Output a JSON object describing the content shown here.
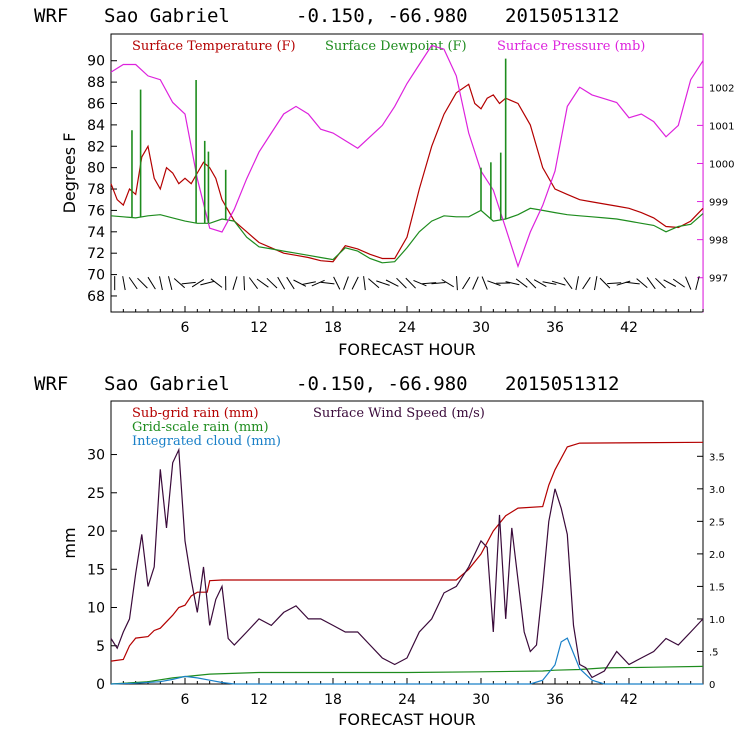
{
  "chart_data": [
    {
      "type": "line",
      "header": {
        "model": "WRF",
        "station": "Sao Gabriel",
        "coords": "-0.150, -66.980",
        "run": "2015051312"
      },
      "xlabel": "FORECAST HOUR",
      "ylabel": "Degrees F",
      "xlim": [
        0,
        48
      ],
      "xticks": [
        "6",
        "12",
        "18",
        "24",
        "30",
        "36",
        "42"
      ],
      "ylim": [
        66.5,
        92.5
      ],
      "yticks": [
        "68",
        "70",
        "72",
        "74",
        "76",
        "78",
        "80",
        "82",
        "84",
        "86",
        "88",
        "90"
      ],
      "y2lim": [
        996.1,
        1003.4
      ],
      "y2ticks": [
        "997",
        "998",
        "999",
        "1000",
        "1001",
        "1002"
      ],
      "series": [
        {
          "name": "Surface Temperature (F)",
          "color": "#b40000",
          "axis": "left",
          "x": [
            0,
            0.5,
            1,
            1.5,
            2,
            2.5,
            3,
            3.5,
            4,
            4.5,
            5,
            5.5,
            6,
            6.5,
            7,
            7.5,
            8,
            8.5,
            9,
            9.5,
            10,
            11,
            12,
            13,
            14,
            15,
            16,
            17,
            18,
            19,
            20,
            21,
            22,
            23,
            24,
            25,
            26,
            27,
            28,
            29,
            29.5,
            30,
            30.5,
            31,
            31.5,
            32,
            33,
            34,
            35,
            36,
            37,
            38,
            39,
            40,
            41,
            42,
            43,
            44,
            45,
            46,
            47,
            48
          ],
          "y": [
            78.5,
            77,
            76.5,
            78,
            77.5,
            81,
            82,
            79,
            78,
            80,
            79.5,
            78.5,
            79,
            78.5,
            79.5,
            80.5,
            80,
            79,
            77,
            76,
            75,
            74,
            73,
            72.5,
            72,
            71.8,
            71.6,
            71.3,
            71.2,
            72.7,
            72.4,
            71.9,
            71.5,
            71.5,
            73.5,
            78,
            82,
            85,
            87,
            87.8,
            86,
            85.5,
            86.5,
            86.8,
            86,
            86.5,
            86,
            84,
            80,
            78,
            77.5,
            77,
            76.8,
            76.6,
            76.4,
            76.2,
            75.8,
            75.3,
            74.5,
            74.4,
            75,
            76.2
          ]
        },
        {
          "name": "Surface Dewpoint (F)",
          "color": "#1e8c1e",
          "axis": "left",
          "x": [
            0,
            1,
            2,
            3,
            4,
            5,
            6,
            7,
            8,
            9,
            10,
            11,
            12,
            13,
            14,
            15,
            16,
            17,
            18,
            19,
            20,
            21,
            22,
            23,
            24,
            25,
            26,
            27,
            28,
            29,
            30,
            31,
            32,
            33,
            34,
            35,
            36,
            37,
            38,
            39,
            40,
            41,
            42,
            43,
            44,
            45,
            46,
            47,
            48
          ],
          "y": [
            75.5,
            75.4,
            75.3,
            75.5,
            75.6,
            75.3,
            75,
            74.8,
            74.8,
            75.2,
            75,
            73.5,
            72.6,
            72.4,
            72.2,
            72,
            71.8,
            71.6,
            71.4,
            72.5,
            72.2,
            71.5,
            71.1,
            71.2,
            72.5,
            74,
            75,
            75.5,
            75.4,
            75.4,
            76,
            75,
            75.2,
            75.6,
            76.2,
            76,
            75.8,
            75.6,
            75.5,
            75.4,
            75.3,
            75.2,
            75,
            74.8,
            74.6,
            74,
            74.5,
            74.7,
            75.7
          ]
        },
        {
          "name": "Surface Pressure (mb)",
          "color": "#dd22dd",
          "axis": "right",
          "x": [
            0,
            1,
            2,
            3,
            4,
            5,
            6,
            7,
            8,
            9,
            10,
            11,
            12,
            13,
            14,
            15,
            16,
            17,
            18,
            19,
            20,
            21,
            22,
            23,
            24,
            25,
            26,
            27,
            28,
            29,
            30,
            31,
            32,
            33,
            34,
            35,
            36,
            37,
            38,
            39,
            40,
            41,
            42,
            43,
            44,
            45,
            46,
            47,
            48
          ],
          "y": [
            1002.4,
            1002.6,
            1002.6,
            1002.3,
            1002.2,
            1001.6,
            1001.3,
            999.6,
            998.3,
            998.2,
            998.8,
            999.6,
            1000.3,
            1000.8,
            1001.3,
            1001.5,
            1001.3,
            1000.9,
            1000.8,
            1000.6,
            1000.4,
            1000.7,
            1001,
            1001.5,
            1002.1,
            1002.6,
            1003.1,
            1003,
            1002.3,
            1000.8,
            999.8,
            999.3,
            998.3,
            997.3,
            998.2,
            998.9,
            999.8,
            1001.5,
            1002,
            1001.8,
            1001.7,
            1001.6,
            1001.2,
            1001.3,
            1001.1,
            1000.7,
            1001,
            1002.2,
            1002.7
          ]
        }
      ],
      "spikes": {
        "color": "#1e8c1e",
        "x": [
          1.7,
          2.4,
          6.9,
          7.6,
          7.9,
          9.3,
          30,
          30.8,
          31.6,
          32.0
        ],
        "y": [
          83.5,
          87.3,
          88.2,
          82.5,
          81.5,
          79.8,
          80,
          80.5,
          81.4,
          90.2
        ]
      },
      "wind_barbs": "present"
    },
    {
      "type": "line",
      "header": {
        "model": "WRF",
        "station": "Sao Gabriel",
        "coords": "-0.150, -66.980",
        "run": "2015051312"
      },
      "xlabel": "FORECAST HOUR",
      "ylabel": "mm",
      "xlim": [
        0,
        48
      ],
      "xticks": [
        "6",
        "12",
        "18",
        "24",
        "30",
        "36",
        "42"
      ],
      "ylim": [
        0,
        37
      ],
      "yticks": [
        "0",
        "5",
        "10",
        "15",
        "20",
        "25",
        "30"
      ],
      "y2lim": [
        0,
        4.35
      ],
      "y2ticks": [
        "0",
        ".5",
        "1.0",
        "1.5",
        "2.0",
        "2.5",
        "3.0",
        "3.5"
      ],
      "series": [
        {
          "name": "Sub-grid rain (mm)",
          "color": "#b40000",
          "axis": "left",
          "x": [
            0,
            1,
            1.5,
            2,
            3,
            3.5,
            4,
            5,
            5.5,
            6,
            6.5,
            7,
            7.8,
            8,
            9,
            10,
            20,
            28,
            29,
            30,
            31,
            32,
            33,
            35,
            35.5,
            36,
            37,
            38,
            48
          ],
          "y": [
            3,
            3.2,
            5,
            6,
            6.2,
            7,
            7.3,
            9,
            10,
            10.3,
            11.5,
            12,
            12,
            13.5,
            13.6,
            13.6,
            13.6,
            13.6,
            15,
            17,
            20,
            22,
            23,
            23.2,
            26,
            28,
            31,
            31.5,
            31.6
          ]
        },
        {
          "name": "Grid-scale rain (mm)",
          "color": "#1e8c1e",
          "axis": "left",
          "x": [
            0,
            3,
            5,
            8,
            12,
            24,
            30,
            35,
            36,
            38,
            40,
            44,
            48
          ],
          "y": [
            0,
            0.3,
            0.8,
            1.3,
            1.5,
            1.5,
            1.6,
            1.7,
            1.8,
            1.9,
            2.1,
            2.2,
            2.3
          ]
        },
        {
          "name": "Integrated cloud (mm)",
          "color": "#1a80c8",
          "axis": "left",
          "x": [
            0,
            2,
            4,
            5,
            6,
            7,
            8,
            9,
            10,
            34,
            35,
            36,
            36.5,
            37,
            37.5,
            38,
            39,
            40,
            48
          ],
          "y": [
            0,
            0.1,
            0.3,
            0.6,
            1,
            0.8,
            0.5,
            0.2,
            0,
            0,
            0.5,
            2.5,
            5.5,
            6,
            4,
            2,
            0.5,
            0,
            0
          ]
        },
        {
          "name": "Surface Wind Speed (m/s)",
          "color": "#3a0a3a",
          "axis": "right",
          "x": [
            0,
            0.5,
            1,
            1.5,
            2,
            2.5,
            3,
            3.5,
            4,
            4.5,
            5,
            5.5,
            6,
            6.5,
            7,
            7.5,
            8,
            8.5,
            9,
            9.5,
            10,
            11,
            12,
            13,
            14,
            15,
            16,
            17,
            18,
            19,
            20,
            21,
            22,
            23,
            24,
            25,
            26,
            27,
            28,
            29,
            30,
            30.5,
            31,
            31.5,
            32,
            32.5,
            33,
            33.5,
            34,
            34.5,
            35,
            35.5,
            36,
            36.5,
            37,
            37.5,
            38,
            38.5,
            39,
            40,
            41,
            42,
            43,
            44,
            45,
            46,
            47,
            48
          ],
          "y": [
            0.7,
            0.55,
            0.8,
            1,
            1.7,
            2.3,
            1.5,
            1.8,
            3.3,
            2.4,
            3.4,
            3.6,
            2.2,
            1.6,
            1.1,
            1.8,
            0.9,
            1.3,
            1.5,
            0.7,
            0.6,
            0.8,
            1.0,
            0.9,
            1.1,
            1.2,
            1.0,
            1.0,
            0.9,
            0.8,
            0.8,
            0.6,
            0.4,
            0.3,
            0.4,
            0.8,
            1.0,
            1.4,
            1.5,
            1.8,
            2.2,
            2.1,
            0.8,
            2.6,
            1.0,
            2.4,
            1.6,
            0.8,
            0.5,
            0.6,
            1.5,
            2.5,
            3.0,
            2.7,
            2.3,
            0.9,
            0.3,
            0.25,
            0.1,
            0.2,
            0.5,
            0.3,
            0.4,
            0.5,
            0.7,
            0.6,
            0.8,
            1.0
          ]
        }
      ]
    }
  ]
}
